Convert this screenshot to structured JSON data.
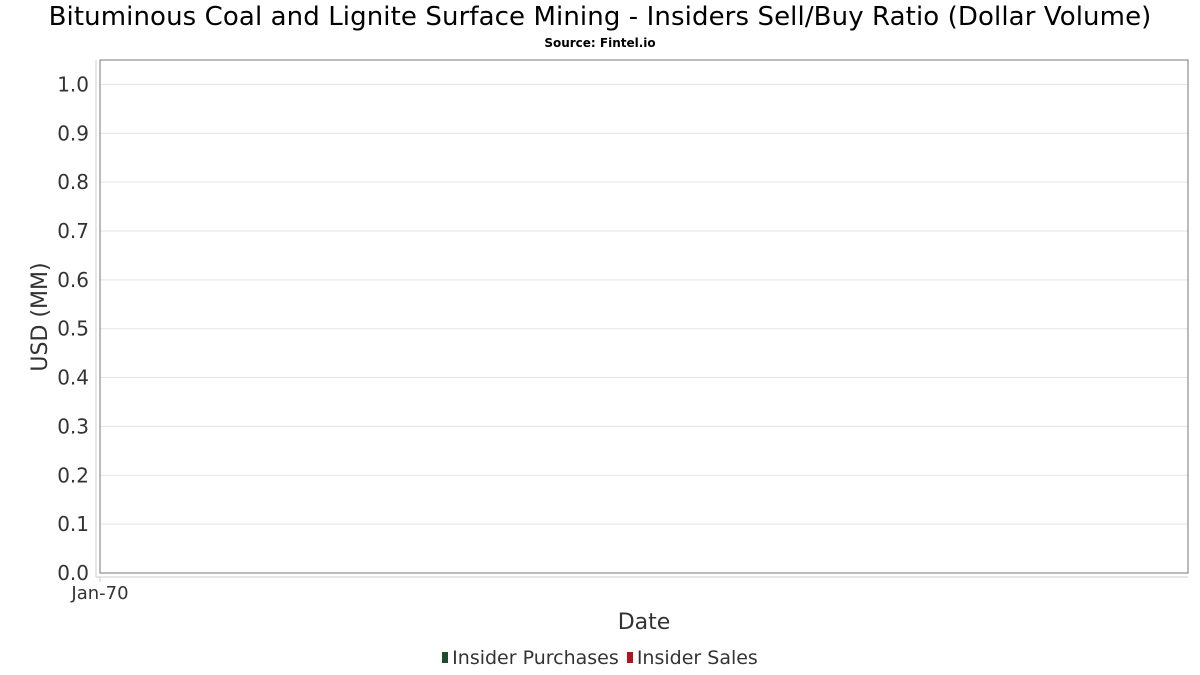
{
  "chart_data": {
    "type": "bar",
    "title": "Bituminous Coal and Lignite Surface Mining - Insiders Sell/Buy Ratio (Dollar Volume)",
    "subtitle": "Source: Fintel.io",
    "xlabel": "Date",
    "ylabel": "USD (MM)",
    "ylim": [
      0,
      1.05
    ],
    "y_ticks": [
      "0.0",
      "0.1",
      "0.2",
      "0.3",
      "0.4",
      "0.5",
      "0.6",
      "0.7",
      "0.8",
      "0.9",
      "1.0"
    ],
    "x_ticks": [
      "Jan-70"
    ],
    "grid": "horizontal",
    "legend_position": "bottom",
    "series": [
      {
        "name": "Insider Purchases",
        "color": "#1e4d2b",
        "values": []
      },
      {
        "name": "Insider Sales",
        "color": "#b0141c",
        "values": []
      }
    ]
  }
}
